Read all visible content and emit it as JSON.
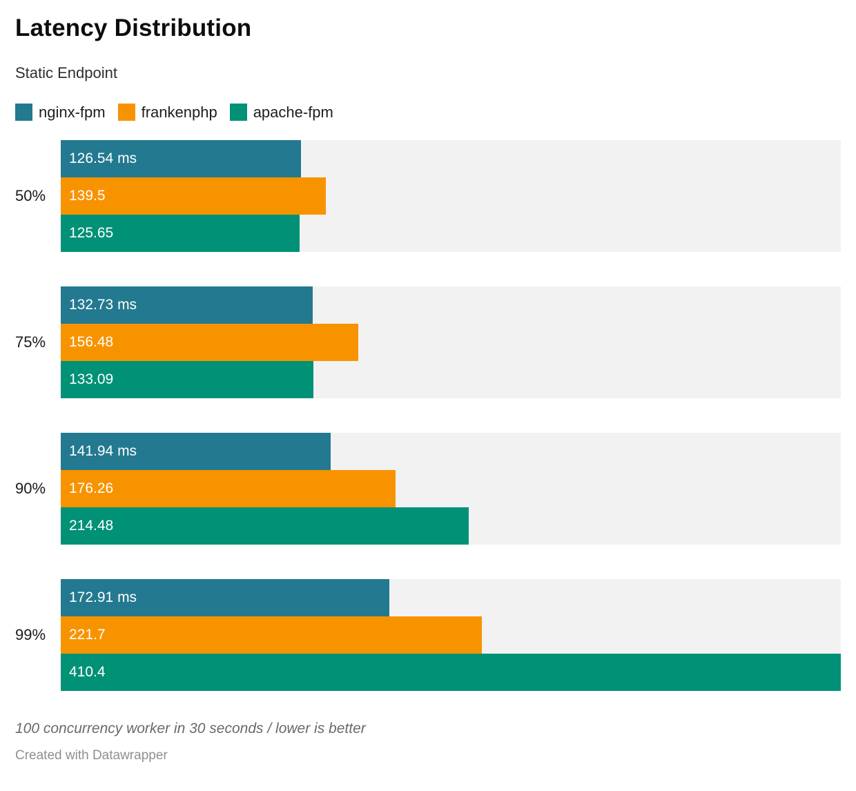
{
  "header": {
    "title": "Latency Distribution",
    "subtitle": "Static Endpoint"
  },
  "chart_data": {
    "type": "bar",
    "orientation": "horizontal",
    "title": "Latency Distribution",
    "subtitle": "Static Endpoint",
    "unit": "ms",
    "xlim": [
      0,
      410.4
    ],
    "xmax": 410.4,
    "grid": false,
    "legend_position": "top",
    "track_color": "#f2f2f2",
    "categories": [
      "50%",
      "75%",
      "90%",
      "99%"
    ],
    "series": [
      {
        "name": "nginx-fpm",
        "color": "#23798f",
        "values": [
          126.54,
          132.73,
          141.94,
          172.91
        ]
      },
      {
        "name": "frankenphp",
        "color": "#f89300",
        "values": [
          139.5,
          156.48,
          176.26,
          221.7
        ]
      },
      {
        "name": "apache-fpm",
        "color": "#009176",
        "values": [
          125.65,
          133.09,
          214.48,
          410.4
        ]
      }
    ],
    "bar_labels": [
      [
        "126.54 ms",
        "139.5",
        "125.65"
      ],
      [
        "132.73 ms",
        "156.48",
        "133.09"
      ],
      [
        "141.94 ms",
        "176.26",
        "214.48"
      ],
      [
        "172.91 ms",
        "221.7",
        "410.4"
      ]
    ]
  },
  "footer": {
    "note": "100 concurrency worker in 30 seconds / lower is better",
    "credit": "Created with Datawrapper"
  }
}
